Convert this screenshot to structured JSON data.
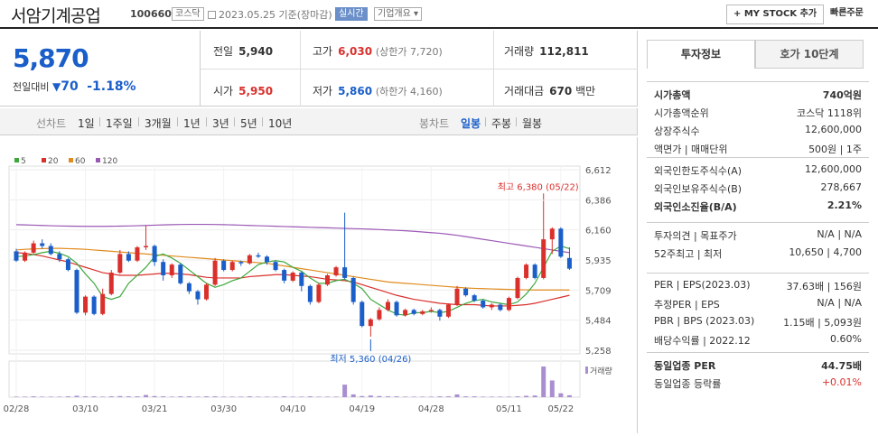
{
  "header": {
    "name": "서암기계공업",
    "code": "100660",
    "market": "코스닥",
    "date": "2023.05.25 기준(장마감)",
    "live": "실시간",
    "company": "기업개요 ▾",
    "mystock": "+ MY STOCK 추가",
    "quick": "빠른주문"
  },
  "quote": {
    "price": "5,870",
    "change_label": "전일대비",
    "change_arrow": "▼",
    "change": "70",
    "change_pct": "-1.18%",
    "prev_label": "전일",
    "prev": "5,940",
    "high_label": "고가",
    "high": "6,030",
    "upper": "(상한가 7,720)",
    "volume_label": "거래량",
    "volume": "112,811",
    "open_label": "시가",
    "open": "5,950",
    "low_label": "저가",
    "low": "5,860",
    "lower": "(하한가 4,160)",
    "amount_label": "거래대금",
    "amount": "670",
    "amount_unit": "백만"
  },
  "tabs": {
    "line": "선차트",
    "d1": "1일",
    "w1": "1주일",
    "m3": "3개월",
    "y1": "1년",
    "y3": "3년",
    "y5": "5년",
    "y10": "10년",
    "candle": "봉차트",
    "daily": "일봉",
    "weekly": "주봉",
    "monthly": "월봉"
  },
  "chart_data": {
    "type": "candlestick",
    "legend": [
      "5",
      "20",
      "60",
      "120"
    ],
    "ma_colors": [
      "#3ca83c",
      "#d9302c",
      "#e08b1e",
      "#9b59b6"
    ],
    "yticks": [
      "6,612",
      "6,386",
      "6,160",
      "5,935",
      "5,709",
      "5,484",
      "5,258"
    ],
    "yrange": [
      5258,
      6612
    ],
    "xlabels": [
      "02/28",
      "03/10",
      "03/21",
      "03/30",
      "04/10",
      "04/19",
      "04/28",
      "05/11",
      "05/22"
    ],
    "annot_high": "최고 6,380 (05/22)",
    "annot_low": "최저 5,360 (04/26)",
    "volume_label": "거래량",
    "candles": [
      [
        6000,
        5930,
        6020,
        5920
      ],
      [
        5930,
        5990,
        6000,
        5920
      ],
      [
        5990,
        6060,
        6080,
        5980
      ],
      [
        6060,
        6040,
        6090,
        6020
      ],
      [
        6040,
        5980,
        6060,
        5970
      ],
      [
        5980,
        5940,
        6000,
        5920
      ],
      [
        5940,
        5860,
        5950,
        5850
      ],
      [
        5860,
        5540,
        5870,
        5530
      ],
      [
        5540,
        5660,
        5670,
        5520
      ],
      [
        5660,
        5530,
        5670,
        5520
      ],
      [
        5530,
        5680,
        5720,
        5520
      ],
      [
        5680,
        5840,
        5860,
        5670
      ],
      [
        5840,
        5980,
        6010,
        5830
      ],
      [
        5980,
        5930,
        6000,
        5920
      ],
      [
        5930,
        6030,
        6040,
        5920
      ],
      [
        6030,
        6040,
        6190,
        6010
      ],
      [
        6040,
        5920,
        6050,
        5890
      ],
      [
        5920,
        5820,
        5940,
        5780
      ],
      [
        5820,
        5900,
        5910,
        5800
      ],
      [
        5900,
        5760,
        5910,
        5750
      ],
      [
        5760,
        5700,
        5770,
        5680
      ],
      [
        5700,
        5640,
        5710,
        5600
      ],
      [
        5640,
        5750,
        5760,
        5630
      ],
      [
        5750,
        5930,
        5950,
        5740
      ],
      [
        5930,
        5860,
        5940,
        5850
      ],
      [
        5860,
        5920,
        5930,
        5850
      ],
      [
        5920,
        5910,
        5930,
        5890
      ],
      [
        5910,
        5970,
        5980,
        5900
      ],
      [
        5970,
        5960,
        5990,
        5950
      ],
      [
        5960,
        5920,
        5970,
        5900
      ],
      [
        5920,
        5860,
        5930,
        5850
      ],
      [
        5860,
        5780,
        5870,
        5760
      ],
      [
        5780,
        5840,
        5850,
        5770
      ],
      [
        5840,
        5740,
        5850,
        5700
      ],
      [
        5740,
        5620,
        5750,
        5600
      ],
      [
        5620,
        5750,
        5760,
        5610
      ],
      [
        5750,
        5820,
        5830,
        5740
      ],
      [
        5820,
        5880,
        5890,
        5810
      ],
      [
        5880,
        5800,
        6290,
        5790
      ],
      [
        5800,
        5620,
        5810,
        5600
      ],
      [
        5620,
        5440,
        5630,
        5430
      ],
      [
        5440,
        5490,
        5500,
        5360
      ],
      [
        5490,
        5560,
        5580,
        5480
      ],
      [
        5560,
        5620,
        5640,
        5550
      ],
      [
        5620,
        5520,
        5630,
        5510
      ],
      [
        5520,
        5560,
        5570,
        5510
      ],
      [
        5560,
        5530,
        5570,
        5520
      ],
      [
        5530,
        5550,
        5560,
        5520
      ],
      [
        5550,
        5560,
        5580,
        5540
      ],
      [
        5560,
        5510,
        5570,
        5480
      ],
      [
        5510,
        5600,
        5610,
        5500
      ],
      [
        5600,
        5720,
        5740,
        5590
      ],
      [
        5720,
        5670,
        5730,
        5660
      ],
      [
        5670,
        5630,
        5680,
        5620
      ],
      [
        5630,
        5580,
        5640,
        5570
      ],
      [
        5580,
        5600,
        5610,
        5560
      ],
      [
        5600,
        5560,
        5610,
        5550
      ],
      [
        5560,
        5650,
        5660,
        5550
      ],
      [
        5650,
        5800,
        5810,
        5640
      ],
      [
        5800,
        5900,
        5910,
        5790
      ],
      [
        5900,
        5800,
        5910,
        5790
      ],
      [
        5800,
        6090,
        6380,
        5790
      ],
      [
        6090,
        6170,
        6180,
        5980
      ],
      [
        6170,
        5960,
        6180,
        5950
      ],
      [
        5950,
        5870,
        6030,
        5860
      ]
    ],
    "ma5": [
      5960,
      5965,
      5975,
      5990,
      6000,
      5985,
      5960,
      5910,
      5830,
      5760,
      5660,
      5640,
      5660,
      5760,
      5820,
      5880,
      5960,
      5980,
      5950,
      5910,
      5860,
      5810,
      5760,
      5730,
      5750,
      5780,
      5800,
      5850,
      5900,
      5920,
      5930,
      5920,
      5880,
      5850,
      5800,
      5760,
      5760,
      5780,
      5790,
      5760,
      5720,
      5640,
      5600,
      5560,
      5530,
      5520,
      5540,
      5540,
      5550,
      5540,
      5550,
      5580,
      5610,
      5630,
      5640,
      5620,
      5610,
      5600,
      5620,
      5680,
      5760,
      5880,
      6000,
      6040,
      6020
    ],
    "ma20": [
      5990,
      5985,
      5975,
      5965,
      5950,
      5935,
      5920,
      5900,
      5880,
      5860,
      5840,
      5830,
      5820,
      5820,
      5820,
      5825,
      5830,
      5835,
      5835,
      5830,
      5825,
      5815,
      5805,
      5800,
      5800,
      5800,
      5800,
      5810,
      5815,
      5820,
      5825,
      5825,
      5820,
      5815,
      5810,
      5800,
      5790,
      5785,
      5780,
      5770,
      5750,
      5730,
      5710,
      5690,
      5670,
      5655,
      5640,
      5630,
      5620,
      5610,
      5605,
      5600,
      5600,
      5600,
      5595,
      5590,
      5590,
      5590,
      5595,
      5600,
      5610,
      5625,
      5640,
      5655,
      5670
    ],
    "ma60": [
      6010,
      6015,
      6018,
      6020,
      6022,
      6022,
      6020,
      6018,
      6015,
      6010,
      6005,
      6000,
      5995,
      5990,
      5985,
      5980,
      5975,
      5970,
      5965,
      5960,
      5955,
      5950,
      5945,
      5940,
      5935,
      5930,
      5925,
      5920,
      5915,
      5910,
      5900,
      5890,
      5880,
      5870,
      5860,
      5850,
      5840,
      5830,
      5820,
      5810,
      5800,
      5790,
      5780,
      5770,
      5765,
      5760,
      5755,
      5750,
      5745,
      5740,
      5735,
      5730,
      5725,
      5722,
      5720,
      5718,
      5716,
      5714,
      5712,
      5711,
      5710,
      5710,
      5710,
      5710,
      5710
    ],
    "ma120": [
      6200,
      6198,
      6196,
      6194,
      6192,
      6190,
      6189,
      6188,
      6187,
      6187,
      6187,
      6188,
      6189,
      6190,
      6192,
      6194,
      6196,
      6198,
      6200,
      6201,
      6202,
      6202,
      6202,
      6201,
      6200,
      6198,
      6196,
      6194,
      6192,
      6190,
      6188,
      6186,
      6184,
      6182,
      6180,
      6178,
      6176,
      6174,
      6172,
      6170,
      6168,
      6166,
      6163,
      6160,
      6157,
      6154,
      6150,
      6145,
      6140,
      6135,
      6128,
      6120,
      6110,
      6100,
      6090,
      6080,
      6070,
      6060,
      6050,
      6040,
      6030,
      6020,
      6010,
      6000,
      5990
    ],
    "volumes": [
      2,
      2,
      3,
      2,
      2,
      2,
      3,
      5,
      3,
      3,
      2,
      3,
      4,
      3,
      3,
      8,
      4,
      3,
      2,
      3,
      3,
      2,
      3,
      3,
      2,
      2,
      2,
      3,
      2,
      2,
      2,
      3,
      2,
      2,
      3,
      2,
      2,
      2,
      45,
      10,
      4,
      6,
      4,
      3,
      3,
      2,
      2,
      2,
      2,
      3,
      3,
      10,
      3,
      3,
      2,
      2,
      2,
      2,
      3,
      5,
      6,
      110,
      60,
      14,
      7
    ]
  },
  "side": {
    "tab1": "투자정보",
    "tab2": "호가 10단계",
    "g1": [
      [
        "시가총액",
        "740억원",
        true
      ],
      [
        "시가총액순위",
        "코스닥 1118위",
        false
      ],
      [
        "상장주식수",
        "12,600,000",
        false
      ],
      [
        "액면가 | 매매단위",
        "500원 | 1주",
        false
      ]
    ],
    "g2": [
      [
        "외국인한도주식수(A)",
        "12,600,000",
        false
      ],
      [
        "외국인보유주식수(B)",
        "278,667",
        false
      ],
      [
        "외국인소진율(B/A)",
        "2.21%",
        true
      ]
    ],
    "g3": [
      [
        "투자의견 | 목표주가",
        "N/A | N/A",
        false
      ],
      [
        "52주최고 | 최저",
        "10,650 | 4,700",
        false
      ]
    ],
    "g4": [
      [
        "PER | EPS(2023.03)",
        "37.63배 | 156원",
        false
      ],
      [
        "추정PER | EPS",
        "N/A | N/A",
        false
      ],
      [
        "PBR | BPS (2023.03)",
        "1.15배 | 5,093원",
        false
      ],
      [
        "배당수익률 | 2022.12",
        "0.60%",
        false
      ]
    ],
    "g5": [
      [
        "동일업종 PER",
        "44.75배",
        true
      ],
      [
        "동일업종 등락률",
        "+0.01%",
        false
      ]
    ]
  }
}
